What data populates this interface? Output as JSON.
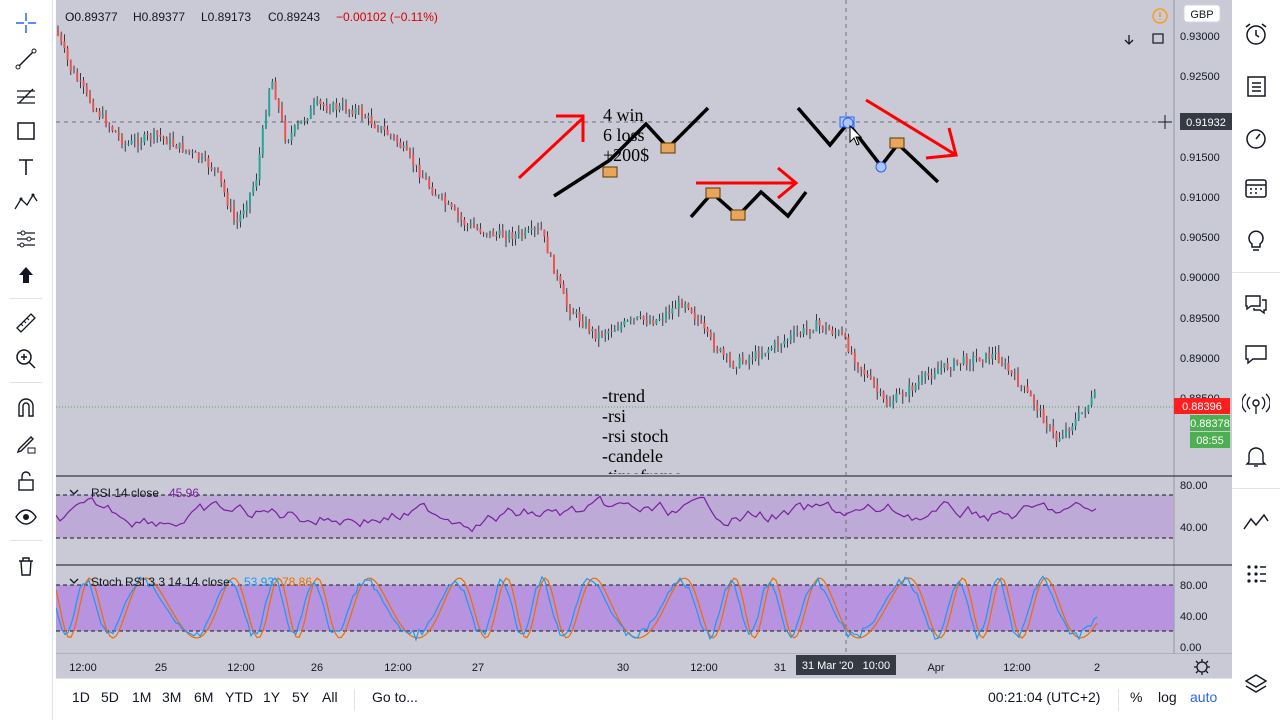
{
  "ohlc": {
    "o": "O0.89377",
    "h": "H0.89377",
    "l": "L0.89173",
    "c": "C0.89243",
    "change": "−0.00102 (−0.11%)"
  },
  "currency_badge": "GBP",
  "price_axis": {
    "ticks": [
      "0.93000",
      "0.92500",
      "0.92000",
      "0.91500",
      "0.91000",
      "0.90500",
      "0.90000",
      "0.89500",
      "0.89000",
      "0.88500"
    ],
    "crosshair_price": "0.91932",
    "current_price": "0.88396",
    "second_price": "0.88378",
    "countdown": "08:55"
  },
  "time_axis": {
    "labels": [
      "12:00",
      "25",
      "12:00",
      "26",
      "12:00",
      "27",
      "30",
      "12:00",
      "31",
      "Apr",
      "12:00",
      "2"
    ],
    "crosshair_time": "31 Mar '20   10:00"
  },
  "annotations": {
    "stats": [
      "4 win",
      "6 loss",
      "+200$"
    ],
    "checklist": [
      "-trend",
      "-rsi",
      "-rsi stoch",
      "-candele",
      "-timeframe"
    ]
  },
  "rsi_panel": {
    "title": "RSI 14 close",
    "value": "45.96",
    "ticks": [
      "80.00",
      "40.00"
    ]
  },
  "stoch_panel": {
    "title": "Stoch RSI 3 3 14 14 close",
    "k_value": "53.93",
    "d_value": "78.86",
    "ticks": [
      "80.00",
      "40.00",
      "0.00"
    ]
  },
  "bottom_bar": {
    "ranges": [
      "1D",
      "5D",
      "1M",
      "3M",
      "6M",
      "YTD",
      "1Y",
      "5Y",
      "All"
    ],
    "goto": "Go to...",
    "clock": "00:21:04 (UTC+2)",
    "percent": "%",
    "log": "log",
    "auto": "auto"
  },
  "colors": {
    "chart_bg": "#c9cad6",
    "rsi_line": "#7b1fa2",
    "stoch_k": "#2196f3",
    "stoch_d": "#ef6c00",
    "current_price_badge": "#ff1e1e",
    "second_price_badge": "#4caf50",
    "drawing_arrow": "#ff0000",
    "drawing_zigzag": "#000000",
    "accent": "#2962ff"
  },
  "icons": {
    "left_toolbar": [
      "crosshair-icon",
      "trend-line-icon",
      "fib-retracement-icon",
      "rectangle-icon",
      "text-icon",
      "pattern-icon",
      "forecast-icon",
      "arrow-up-icon",
      "ruler-icon",
      "zoom-in-icon",
      "magnet-icon",
      "pencil-lock-icon",
      "lock-icon",
      "eye-icon",
      "trash-icon"
    ],
    "right_toolbar": [
      "alarm-clock-icon",
      "watchlist-icon",
      "timer-icon",
      "calendar-icon",
      "lightbulb-icon",
      "chat-bubbles-icon",
      "chat-icon",
      "broadcast-icon",
      "bell-icon",
      "chart-pattern-icon",
      "grid-dots-icon",
      "layers-icon"
    ]
  }
}
